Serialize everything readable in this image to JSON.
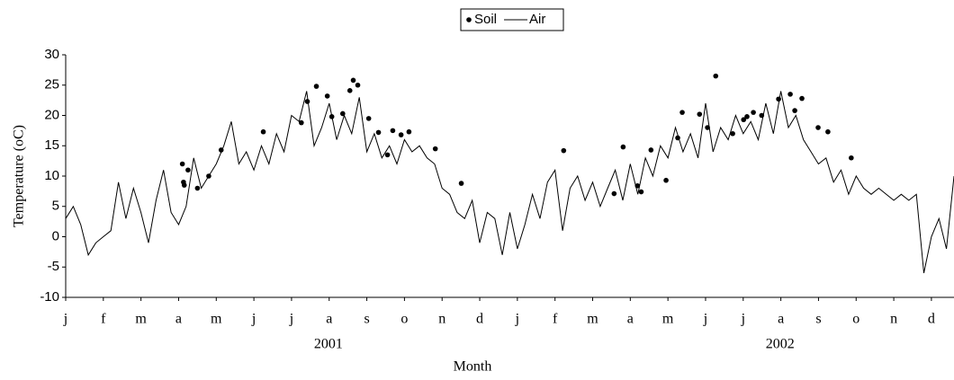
{
  "chart_data": {
    "type": "line",
    "ylabel": "Temperature (oC)",
    "xlabel": "Month",
    "ylim": [
      -10,
      30
    ],
    "yticks": [
      -10,
      -5,
      0,
      5,
      10,
      15,
      20,
      25,
      30
    ],
    "xlim": [
      0,
      23.6
    ],
    "xticks": [
      {
        "value": 0,
        "label": "j"
      },
      {
        "value": 1,
        "label": "f"
      },
      {
        "value": 2,
        "label": "m"
      },
      {
        "value": 3,
        "label": "a"
      },
      {
        "value": 4,
        "label": "m"
      },
      {
        "value": 5,
        "label": "j"
      },
      {
        "value": 6,
        "label": "j"
      },
      {
        "value": 7,
        "label": "a"
      },
      {
        "value": 8,
        "label": "s"
      },
      {
        "value": 9,
        "label": "o"
      },
      {
        "value": 10,
        "label": "n"
      },
      {
        "value": 11,
        "label": "d"
      },
      {
        "value": 12,
        "label": "j"
      },
      {
        "value": 13,
        "label": "f"
      },
      {
        "value": 14,
        "label": "m"
      },
      {
        "value": 15,
        "label": "a"
      },
      {
        "value": 16,
        "label": "m"
      },
      {
        "value": 17,
        "label": "j"
      },
      {
        "value": 18,
        "label": "j"
      },
      {
        "value": 19,
        "label": "a"
      },
      {
        "value": 20,
        "label": "s"
      },
      {
        "value": 21,
        "label": "o"
      },
      {
        "value": 22,
        "label": "n"
      },
      {
        "value": 23,
        "label": "d"
      }
    ],
    "year_labels": [
      {
        "value": 6.98,
        "label": "2001"
      },
      {
        "value": 18.98,
        "label": "2002"
      }
    ],
    "series": [
      {
        "name": "Soil",
        "type": "scatter",
        "color": "#000000",
        "x": [
          3.1,
          3.13,
          3.15,
          3.25,
          3.5,
          3.8,
          4.13,
          5.25,
          6.26,
          6.42,
          6.66,
          6.95,
          7.07,
          7.36,
          7.55,
          7.64,
          7.76,
          8.05,
          8.31,
          8.55,
          8.69,
          8.91,
          9.12,
          9.82,
          10.51,
          13.23,
          14.57,
          14.81,
          15.19,
          15.29,
          15.55,
          15.95,
          16.26,
          16.38,
          16.84,
          17.05,
          17.27,
          17.72,
          18.01,
          18.1,
          18.27,
          18.49,
          18.94,
          19.25,
          19.37,
          19.56,
          19.99,
          20.25,
          20.87
        ],
        "values": [
          12,
          9,
          8.5,
          11,
          8,
          10,
          14.3,
          17.3,
          18.8,
          22.3,
          24.8,
          23.2,
          19.8,
          20.3,
          24.1,
          25.8,
          25,
          19.5,
          17.2,
          13.5,
          17.5,
          16.8,
          17.3,
          14.5,
          8.8,
          14.2,
          7.1,
          14.8,
          8.4,
          7.4,
          14.3,
          9.3,
          16.3,
          20.5,
          20.2,
          18,
          26.5,
          17,
          19.3,
          19.8,
          20.5,
          20,
          22.7,
          23.5,
          20.8,
          22.8,
          18,
          17.3,
          13
        ]
      },
      {
        "name": "Air",
        "type": "line",
        "color": "#000000",
        "x": [
          0,
          0.2,
          0.4,
          0.6,
          0.8,
          1,
          1.2,
          1.4,
          1.6,
          1.8,
          2,
          2.2,
          2.4,
          2.6,
          2.8,
          3,
          3.2,
          3.4,
          3.6,
          3.8,
          4,
          4.2,
          4.4,
          4.6,
          4.8,
          5,
          5.2,
          5.4,
          5.6,
          5.8,
          6,
          6.2,
          6.4,
          6.6,
          6.8,
          7,
          7.2,
          7.4,
          7.6,
          7.8,
          8,
          8.2,
          8.4,
          8.6,
          8.8,
          9,
          9.2,
          9.4,
          9.6,
          9.8,
          10,
          10.2,
          10.4,
          10.6,
          10.8,
          11,
          11.2,
          11.4,
          11.6,
          11.8,
          12,
          12.2,
          12.4,
          12.6,
          12.8,
          13,
          13.2,
          13.4,
          13.6,
          13.8,
          14,
          14.2,
          14.4,
          14.6,
          14.8,
          15,
          15.2,
          15.4,
          15.6,
          15.8,
          16,
          16.2,
          16.4,
          16.6,
          16.8,
          17,
          17.2,
          17.4,
          17.6,
          17.8,
          18,
          18.2,
          18.4,
          18.6,
          18.8,
          19,
          19.2,
          19.4,
          19.6,
          19.8,
          20,
          20.2,
          20.4,
          20.6,
          20.8,
          21,
          21.2,
          21.4,
          21.6,
          21.8,
          22,
          22.2,
          22.4,
          22.6,
          22.8,
          23,
          23.2,
          23.4,
          23.6
        ],
        "values": [
          3,
          5,
          2,
          -3,
          -1,
          0,
          1,
          9,
          3,
          8,
          4,
          -1,
          6,
          11,
          4,
          2,
          5,
          13,
          8,
          10,
          12,
          15,
          19,
          12,
          14,
          11,
          15,
          12,
          17,
          14,
          20,
          19,
          24,
          15,
          18,
          22,
          16,
          20,
          17,
          23,
          14,
          17,
          13,
          15,
          12,
          16,
          14,
          15,
          13,
          12,
          8,
          7,
          4,
          3,
          6,
          -1,
          4,
          3,
          -3,
          4,
          -2,
          2,
          7,
          3,
          9,
          11,
          1,
          8,
          10,
          6,
          9,
          5,
          8,
          11,
          6,
          12,
          7,
          13,
          10,
          15,
          13,
          18,
          14,
          17,
          13,
          22,
          14,
          18,
          16,
          20,
          17,
          19,
          16,
          22,
          17,
          24,
          18,
          20,
          16,
          14,
          12,
          13,
          9,
          11,
          7,
          10,
          8,
          7,
          8,
          7,
          6,
          7,
          6,
          7,
          -6,
          0,
          3,
          -2,
          10
        ]
      }
    ]
  }
}
